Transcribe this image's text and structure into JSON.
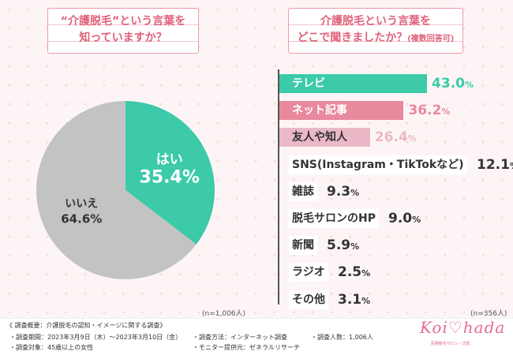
{
  "left": {
    "title_line1": "“介護脱毛”という言葉を",
    "title_line2": "知っていますか？",
    "n_note": "(n=1,006人)"
  },
  "right": {
    "title_line1": "介護脱毛という言葉を",
    "title_line2": "どこで聞きましたか？",
    "title_sub": "(複数回答可)",
    "n_note": "(n=356人)"
  },
  "colors": {
    "teal": "#3ccaa9",
    "gray": "#c3c3c3",
    "pink": "#e8899d",
    "light_pink": "#eab8c6",
    "title_pink": "#e0607a"
  },
  "chart_data": [
    {
      "type": "pie",
      "slices": [
        {
          "label": "はい",
          "value": 35.4,
          "display": "35.4%",
          "color": "#3ccaa9"
        },
        {
          "label": "いいえ",
          "value": 64.6,
          "display": "64.6%",
          "color": "#c3c3c3"
        }
      ]
    },
    {
      "type": "bar",
      "orientation": "horizontal",
      "categories": [
        "テレビ",
        "ネット記事",
        "友人や知人",
        "SNS(Instagram・TikTokなど)",
        "雑誌",
        "脱毛サロンのHP",
        "新聞",
        "ラジオ",
        "その他"
      ],
      "values": [
        43.0,
        36.2,
        26.4,
        12.1,
        9.3,
        9.0,
        5.9,
        2.5,
        3.1
      ],
      "value_labels": [
        "43.0",
        "36.2",
        "26.4",
        "12.1",
        "9.3",
        "9.0",
        "5.9",
        "2.5",
        "3.1"
      ],
      "unit": "%",
      "colors": [
        "#3ccaa9",
        "#e8899d",
        "#eab8c6"
      ]
    }
  ],
  "footer": {
    "summary": "《 調査概要：介護脱毛の認知・イメージに関する調査》",
    "period": "・調査期間：2023年3月9日（木）〜2023年3月10日（金）",
    "target": "・調査対象：45歳以上の女性",
    "method": "・調査方法：インターネット調査",
    "provider": "・モニター提供元：ゼネラルリサーチ",
    "count": "・調査人数：1,006人"
  },
  "logo": {
    "text": "Koi♡hada",
    "sub": "医療脱毛サロン・恋肌"
  }
}
